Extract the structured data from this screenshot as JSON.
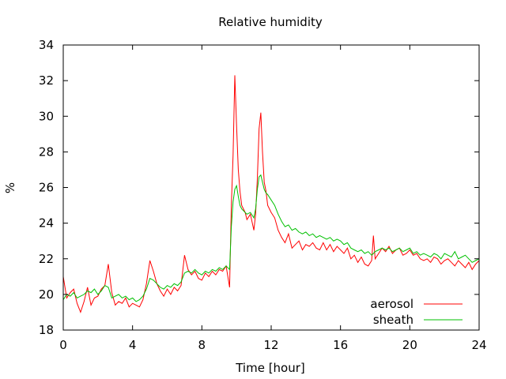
{
  "chart_data": {
    "type": "line",
    "title": "Relative humidity",
    "xlabel": "Time [hour]",
    "ylabel": "%",
    "xlim": [
      0,
      24
    ],
    "ylim": [
      18,
      34
    ],
    "xticks": [
      0,
      4,
      8,
      12,
      16,
      20,
      24
    ],
    "yticks": [
      18,
      20,
      22,
      24,
      26,
      28,
      30,
      32,
      34
    ],
    "grid": false,
    "legend_position": "bottom-right",
    "colors": {
      "aerosol": "#ff0000",
      "sheath": "#00c000",
      "axis": "#000000"
    },
    "series": [
      {
        "name": "aerosol",
        "x": [
          0,
          0.2,
          0.4,
          0.6,
          0.8,
          1.0,
          1.2,
          1.4,
          1.6,
          1.8,
          2.0,
          2.2,
          2.4,
          2.6,
          2.8,
          3.0,
          3.2,
          3.4,
          3.6,
          3.8,
          4.0,
          4.2,
          4.4,
          4.6,
          4.8,
          5.0,
          5.2,
          5.4,
          5.6,
          5.8,
          6.0,
          6.2,
          6.4,
          6.6,
          6.8,
          7.0,
          7.2,
          7.4,
          7.6,
          7.8,
          8.0,
          8.2,
          8.4,
          8.6,
          8.8,
          9.0,
          9.2,
          9.4,
          9.6,
          9.7,
          9.8,
          9.9,
          10.0,
          10.1,
          10.2,
          10.3,
          10.4,
          10.5,
          10.6,
          10.8,
          11.0,
          11.1,
          11.2,
          11.3,
          11.4,
          11.5,
          11.6,
          11.7,
          11.8,
          12.0,
          12.2,
          12.4,
          12.6,
          12.8,
          13.0,
          13.2,
          13.4,
          13.6,
          13.8,
          14.0,
          14.2,
          14.4,
          14.6,
          14.8,
          15.0,
          15.2,
          15.4,
          15.6,
          15.8,
          16.0,
          16.2,
          16.4,
          16.6,
          16.8,
          17.0,
          17.2,
          17.4,
          17.6,
          17.8,
          17.9,
          18.0,
          18.2,
          18.4,
          18.6,
          18.8,
          19.0,
          19.2,
          19.4,
          19.6,
          19.8,
          20.0,
          20.2,
          20.4,
          20.6,
          20.8,
          21.0,
          21.2,
          21.4,
          21.6,
          21.8,
          22.0,
          22.2,
          22.4,
          22.6,
          22.8,
          23.0,
          23.2,
          23.4,
          23.6,
          23.8,
          24.0
        ],
        "y": [
          21.0,
          19.8,
          20.1,
          20.3,
          19.5,
          19.0,
          19.6,
          20.4,
          19.4,
          19.8,
          19.9,
          20.3,
          20.5,
          21.7,
          20.1,
          19.4,
          19.6,
          19.5,
          19.8,
          19.3,
          19.5,
          19.4,
          19.3,
          19.7,
          20.6,
          21.9,
          21.3,
          20.6,
          20.2,
          19.9,
          20.3,
          20.0,
          20.4,
          20.2,
          20.5,
          22.2,
          21.4,
          21.1,
          21.3,
          20.9,
          20.8,
          21.2,
          21.0,
          21.3,
          21.1,
          21.4,
          21.3,
          21.6,
          20.4,
          25.0,
          27.8,
          32.3,
          29.5,
          27.0,
          25.8,
          25.0,
          24.8,
          24.6,
          24.2,
          24.5,
          23.6,
          24.5,
          26.5,
          29.3,
          30.2,
          28.0,
          26.3,
          25.8,
          25.0,
          24.6,
          24.3,
          23.6,
          23.2,
          22.9,
          23.4,
          22.6,
          22.8,
          23.0,
          22.5,
          22.8,
          22.7,
          22.9,
          22.6,
          22.5,
          22.9,
          22.5,
          22.8,
          22.4,
          22.7,
          22.5,
          22.3,
          22.6,
          22.0,
          22.2,
          21.8,
          22.1,
          21.7,
          21.6,
          21.9,
          23.3,
          22.0,
          22.3,
          22.6,
          22.4,
          22.7,
          22.3,
          22.5,
          22.6,
          22.2,
          22.3,
          22.5,
          22.2,
          22.3,
          22.0,
          21.9,
          22.0,
          21.8,
          22.1,
          22.0,
          21.7,
          21.9,
          22.0,
          21.8,
          21.6,
          21.9,
          21.7,
          21.5,
          21.8,
          21.4,
          21.7,
          21.9
        ]
      },
      {
        "name": "sheath",
        "x": [
          0,
          0.2,
          0.4,
          0.6,
          0.8,
          1.0,
          1.2,
          1.4,
          1.6,
          1.8,
          2.0,
          2.2,
          2.4,
          2.6,
          2.8,
          3.0,
          3.2,
          3.4,
          3.6,
          3.8,
          4.0,
          4.2,
          4.4,
          4.6,
          4.8,
          5.0,
          5.2,
          5.4,
          5.6,
          5.8,
          6.0,
          6.2,
          6.4,
          6.6,
          6.8,
          7.0,
          7.2,
          7.4,
          7.6,
          7.8,
          8.0,
          8.2,
          8.4,
          8.6,
          8.8,
          9.0,
          9.2,
          9.4,
          9.6,
          9.7,
          9.8,
          9.9,
          10.0,
          10.1,
          10.2,
          10.3,
          10.4,
          10.5,
          10.6,
          10.8,
          11.0,
          11.1,
          11.2,
          11.3,
          11.4,
          11.5,
          11.6,
          11.7,
          11.8,
          12.0,
          12.2,
          12.4,
          12.6,
          12.8,
          13.0,
          13.2,
          13.4,
          13.6,
          13.8,
          14.0,
          14.2,
          14.4,
          14.6,
          14.8,
          15.0,
          15.2,
          15.4,
          15.6,
          15.8,
          16.0,
          16.2,
          16.4,
          16.6,
          16.8,
          17.0,
          17.2,
          17.4,
          17.6,
          17.8,
          17.9,
          18.0,
          18.2,
          18.4,
          18.6,
          18.8,
          19.0,
          19.2,
          19.4,
          19.6,
          19.8,
          20.0,
          20.2,
          20.4,
          20.6,
          20.8,
          21.0,
          21.2,
          21.4,
          21.6,
          21.8,
          22.0,
          22.2,
          22.4,
          22.6,
          22.8,
          23.0,
          23.2,
          23.4,
          23.6,
          23.8,
          24.0
        ],
        "y": [
          19.7,
          20.0,
          19.9,
          20.1,
          19.8,
          19.9,
          20.0,
          20.2,
          20.1,
          20.3,
          20.0,
          20.2,
          20.5,
          20.4,
          19.8,
          19.9,
          20.0,
          19.8,
          19.9,
          19.7,
          19.8,
          19.6,
          19.7,
          19.9,
          20.3,
          20.9,
          20.8,
          20.6,
          20.4,
          20.3,
          20.5,
          20.4,
          20.6,
          20.5,
          20.7,
          21.2,
          21.3,
          21.2,
          21.4,
          21.2,
          21.1,
          21.3,
          21.2,
          21.4,
          21.3,
          21.5,
          21.4,
          21.6,
          21.4,
          23.8,
          25.2,
          25.9,
          26.1,
          25.5,
          25.0,
          24.8,
          24.7,
          24.6,
          24.5,
          24.6,
          24.3,
          24.8,
          25.9,
          26.6,
          26.7,
          26.3,
          25.9,
          25.7,
          25.6,
          25.3,
          25.0,
          24.5,
          24.1,
          23.8,
          23.9,
          23.6,
          23.7,
          23.5,
          23.4,
          23.5,
          23.3,
          23.4,
          23.2,
          23.3,
          23.2,
          23.1,
          23.2,
          23.0,
          23.1,
          23.0,
          22.8,
          22.9,
          22.6,
          22.5,
          22.4,
          22.5,
          22.3,
          22.4,
          22.2,
          22.3,
          22.4,
          22.5,
          22.6,
          22.5,
          22.6,
          22.4,
          22.5,
          22.6,
          22.4,
          22.5,
          22.6,
          22.3,
          22.4,
          22.2,
          22.3,
          22.2,
          22.1,
          22.3,
          22.2,
          22.0,
          22.3,
          22.2,
          22.1,
          22.4,
          22.0,
          22.1,
          22.2,
          22.0,
          21.8,
          21.9,
          22.0
        ]
      }
    ]
  }
}
